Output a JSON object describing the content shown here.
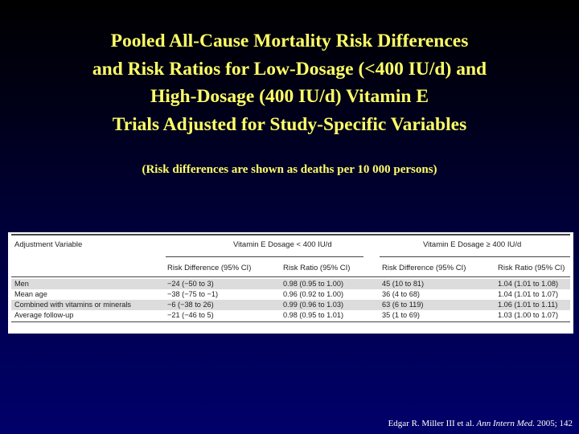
{
  "slide": {
    "title_lines": [
      "Pooled All-Cause Mortality Risk Differences",
      "and Risk Ratios for Low-Dosage (<400 IU/d) and",
      "High-Dosage (400 IU/d) Vitamin E",
      "Trials Adjusted for Study-Specific Variables"
    ],
    "subtitle": "(Risk differences are shown as deaths per 10 000 persons)"
  },
  "table": {
    "header": {
      "adjustment_variable": "Adjustment Variable",
      "group_low": "Vitamin E Dosage < 400 IU/d",
      "group_high": "Vitamin E Dosage ≥ 400 IU/d",
      "risk_difference": "Risk Difference (95% CI)",
      "risk_ratio": "Risk Ratio (95% CI)"
    },
    "rows": [
      {
        "variable": "Men",
        "low_rd": "−24 (−50 to 3)",
        "low_rr": "0.98 (0.95 to 1.00)",
        "high_rd": "45 (10 to 81)",
        "high_rr": "1.04 (1.01 to 1.08)"
      },
      {
        "variable": "Mean age",
        "low_rd": "−38 (−75 to −1)",
        "low_rr": "0.96 (0.92 to 1.00)",
        "high_rd": "36 (4 to 68)",
        "high_rr": "1.04 (1.01 to 1.07)"
      },
      {
        "variable": "Combined with vitamins or minerals",
        "low_rd": "−6 (−38 to 26)",
        "low_rr": "0.99 (0.96 to 1.03)",
        "high_rd": "63 (6 to 119)",
        "high_rr": "1.06 (1.01 to 1.11)"
      },
      {
        "variable": "Average follow-up",
        "low_rd": "−21 (−46 to 5)",
        "low_rr": "0.98 (0.95 to 1.01)",
        "high_rd": "35 (1 to 69)",
        "high_rr": "1.03 (1.00 to 1.07)"
      }
    ]
  },
  "citation": {
    "authors": "Edgar R. Miller III et al.",
    "journal": "Ann Intern Med.",
    "year_volume": "2005; 142"
  }
}
